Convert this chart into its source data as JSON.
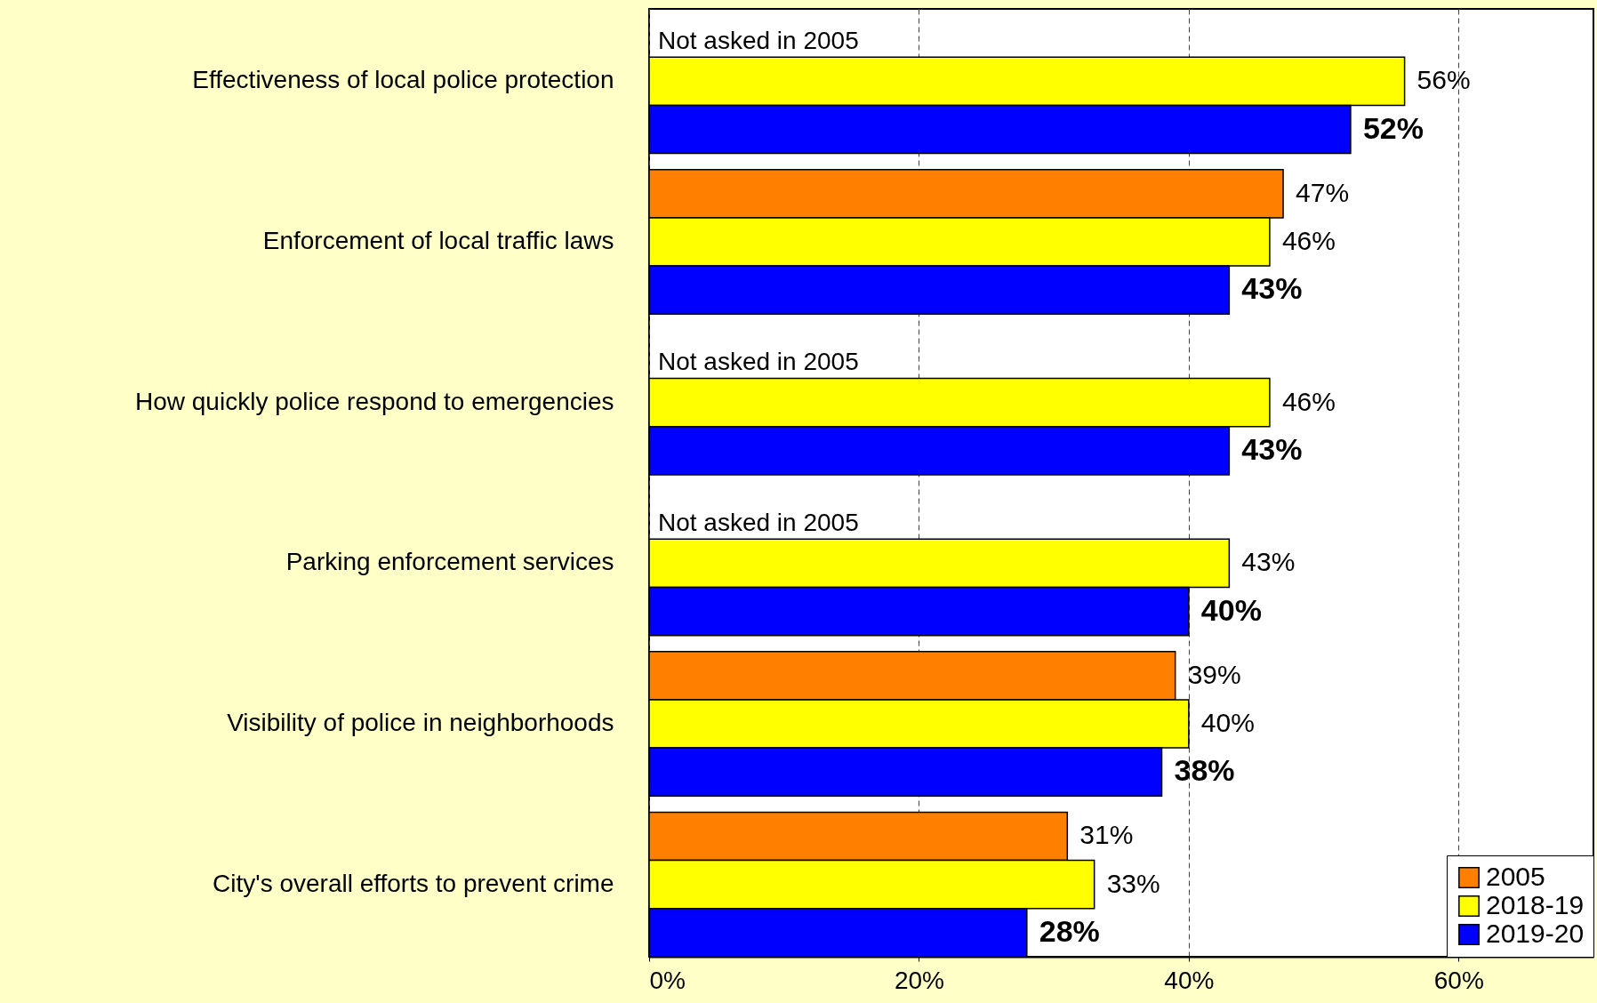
{
  "chart_data": {
    "type": "bar",
    "orientation": "horizontal",
    "categories": [
      "Effectiveness of local police protection",
      "Enforcement of local traffic laws",
      "How quickly police respond to emergencies",
      "Parking enforcement services",
      "Visibility of police in neighborhoods",
      "City's overall efforts to prevent crime"
    ],
    "series": [
      {
        "name": "2005",
        "color": "#ff8000",
        "values": [
          null,
          47,
          null,
          null,
          39,
          31
        ],
        "value_labels": [
          null,
          "47%",
          null,
          null,
          "39%",
          "31%"
        ]
      },
      {
        "name": "2018-19",
        "color": "#ffff00",
        "values": [
          56,
          46,
          46,
          43,
          40,
          33
        ],
        "value_labels": [
          "56%",
          "46%",
          "46%",
          "43%",
          "40%",
          "33%"
        ]
      },
      {
        "name": "2019-20",
        "color": "#0000ff",
        "values": [
          52,
          43,
          43,
          40,
          38,
          28
        ],
        "value_labels": [
          "52%",
          "43%",
          "43%",
          "40%",
          "38%",
          "28%"
        ]
      }
    ],
    "xlim": [
      0,
      70
    ],
    "xticks": [
      {
        "value": 0,
        "label": "0%"
      },
      {
        "value": 20,
        "label": "20%"
      },
      {
        "value": 40,
        "label": "40%"
      },
      {
        "value": 60,
        "label": "60%"
      }
    ],
    "grid": "x",
    "legend": "bottom right",
    "annotations": [
      "Not asked in 2005",
      "Not asked in 2005",
      "Not asked in 2005"
    ]
  }
}
